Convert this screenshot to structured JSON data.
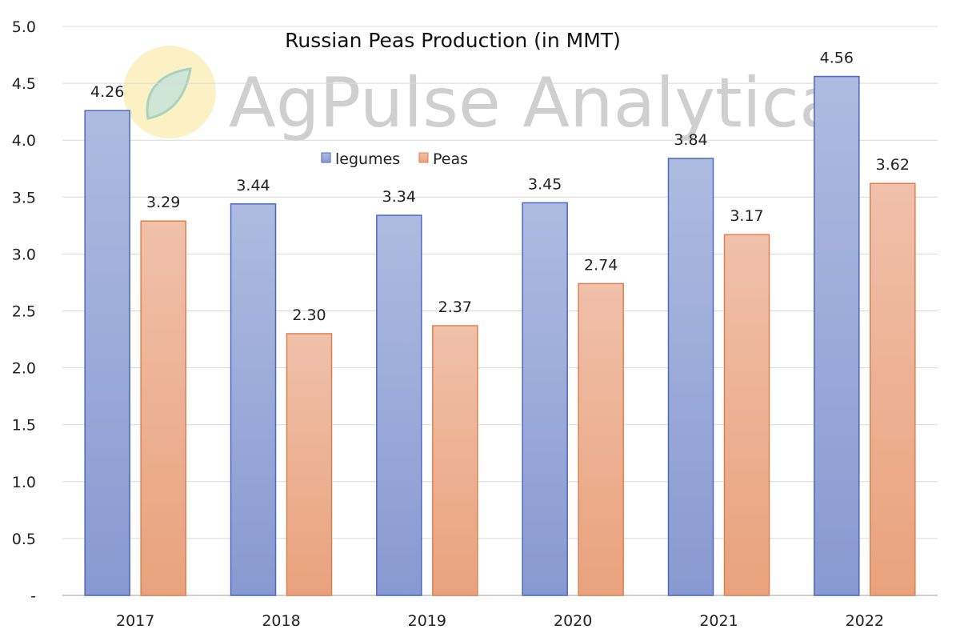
{
  "chart_data": {
    "type": "bar",
    "title": "Russian Peas Production (in MMT)",
    "xlabel": "",
    "ylabel": "",
    "categories": [
      "2017",
      "2018",
      "2019",
      "2020",
      "2021",
      "2022"
    ],
    "series": [
      {
        "name": "legumes",
        "values": [
          4.26,
          3.44,
          3.34,
          3.45,
          3.84,
          4.56
        ],
        "labels": [
          "4.26",
          "3.44",
          "3.34",
          "3.45",
          "3.84",
          "4.56"
        ],
        "color": "#8fa3d8"
      },
      {
        "name": "Peas",
        "values": [
          3.29,
          2.3,
          2.37,
          2.74,
          3.17,
          3.62
        ],
        "labels": [
          "3.29",
          "2.30",
          "2.37",
          "2.74",
          "3.17",
          "3.62"
        ],
        "color": "#eba582"
      }
    ],
    "ylim": [
      0,
      5
    ],
    "yticks": [
      "-",
      "0.5",
      "1.0",
      "1.5",
      "2.0",
      "2.5",
      "3.0",
      "3.5",
      "4.0",
      "4.5",
      "5.0"
    ],
    "grid": true,
    "legend_position": "top-center",
    "watermark": "AgPulse Analytica"
  }
}
